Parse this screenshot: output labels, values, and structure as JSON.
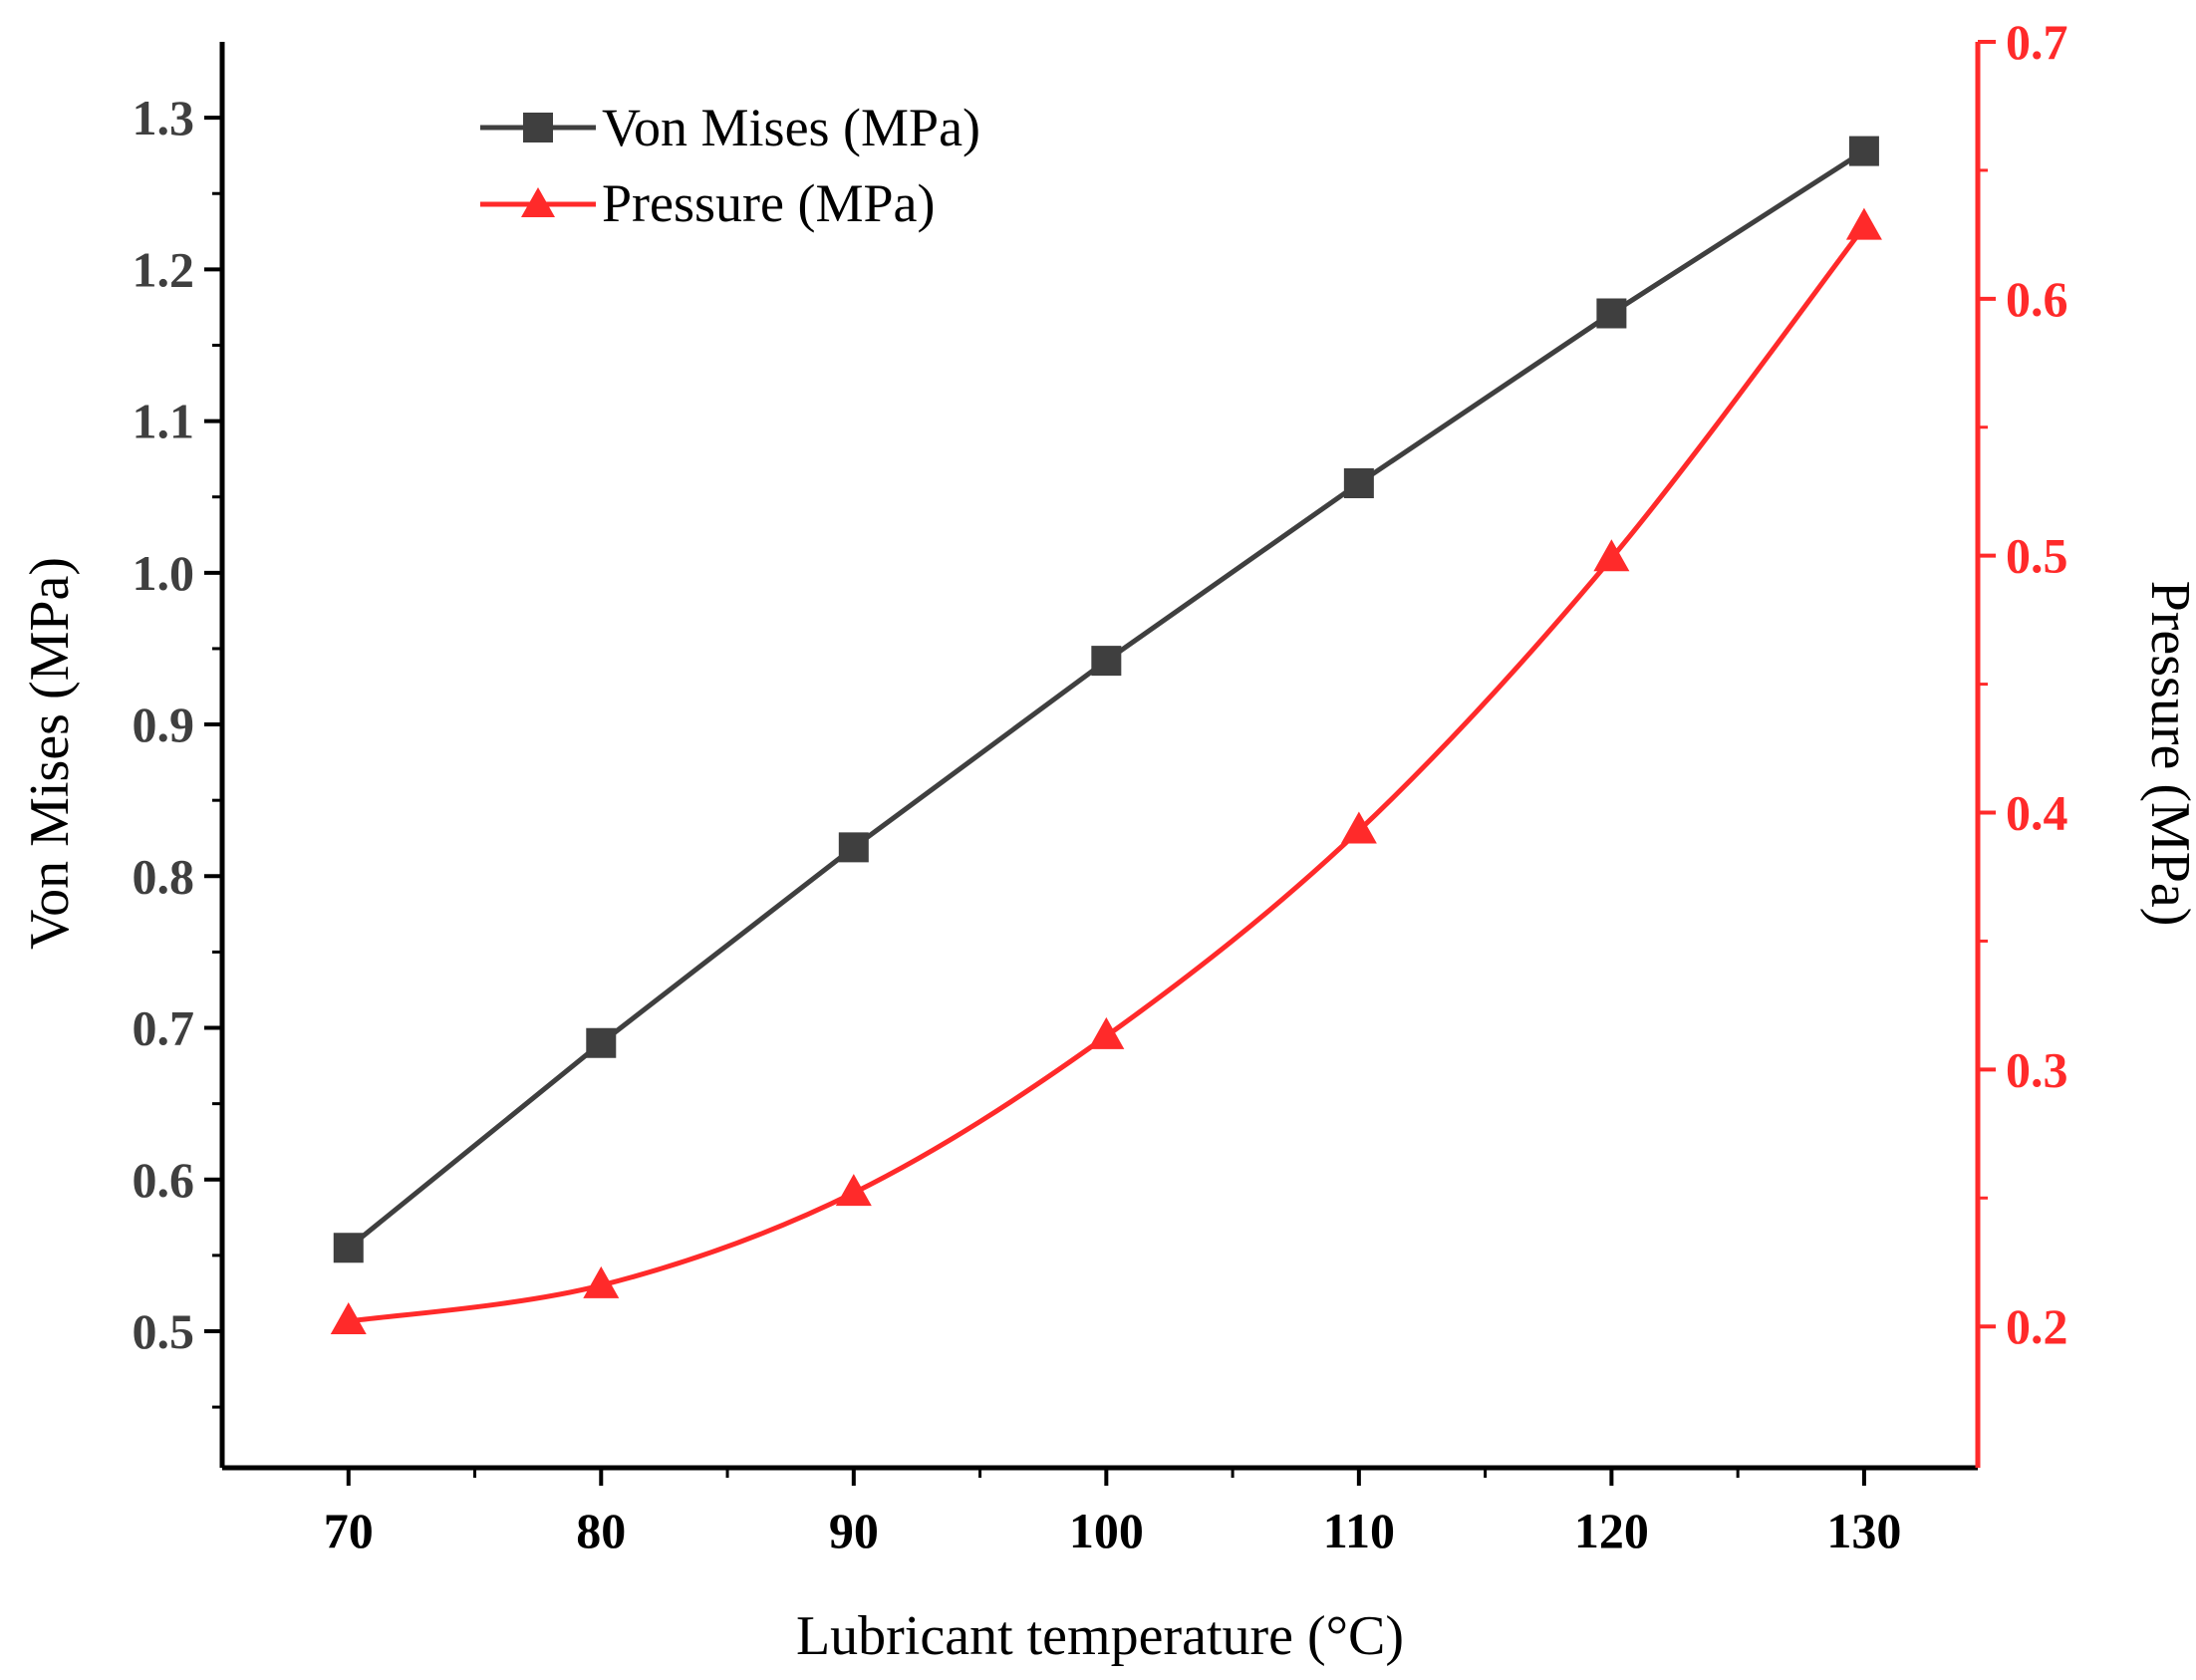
{
  "chart_data": {
    "type": "line",
    "x": [
      70,
      80,
      90,
      100,
      110,
      120,
      130
    ],
    "xlabel": "Lubricant temperature (°C)",
    "xlim": [
      65,
      134.5
    ],
    "xticks": [
      70,
      80,
      90,
      100,
      110,
      120,
      130
    ],
    "xtick_labels": [
      "70",
      "80",
      "90",
      "100",
      "110",
      "120",
      "130"
    ],
    "series": [
      {
        "name": "Von Mises (MPa)",
        "axis": "left",
        "marker": "square",
        "values": [
          0.555,
          0.69,
          0.819,
          0.942,
          1.059,
          1.171,
          1.278
        ]
      },
      {
        "name": "Pressure (MPa)",
        "axis": "right",
        "marker": "triangle",
        "smooth": true,
        "values": [
          0.202,
          0.216,
          0.252,
          0.313,
          0.393,
          0.499,
          0.628
        ]
      }
    ],
    "ylabel_left": "Von Mises (MPa)",
    "ylim_left": [
      0.41,
      1.35
    ],
    "yticks_left": [
      0.5,
      0.6,
      0.7,
      0.8,
      0.9,
      1.0,
      1.1,
      1.2,
      1.3
    ],
    "ytick_labels_left": [
      "0.5",
      "0.6",
      "0.7",
      "0.8",
      "0.9",
      "1.0",
      "1.1",
      "1.2",
      "1.3"
    ],
    "ylabel_right": "Pressure (MPa)",
    "ylim_right": [
      0.145,
      0.7
    ],
    "yticks_right": [
      0.2,
      0.3,
      0.4,
      0.5,
      0.6,
      0.7
    ],
    "ytick_labels_right": [
      "0.2",
      "0.3",
      "0.4",
      "0.5",
      "0.6",
      "0.7"
    ],
    "legend_position": "top-left",
    "grid": false,
    "colors": {
      "left": "#3f3f3f",
      "right": "#ff2a2a",
      "axis": "#000000"
    }
  }
}
